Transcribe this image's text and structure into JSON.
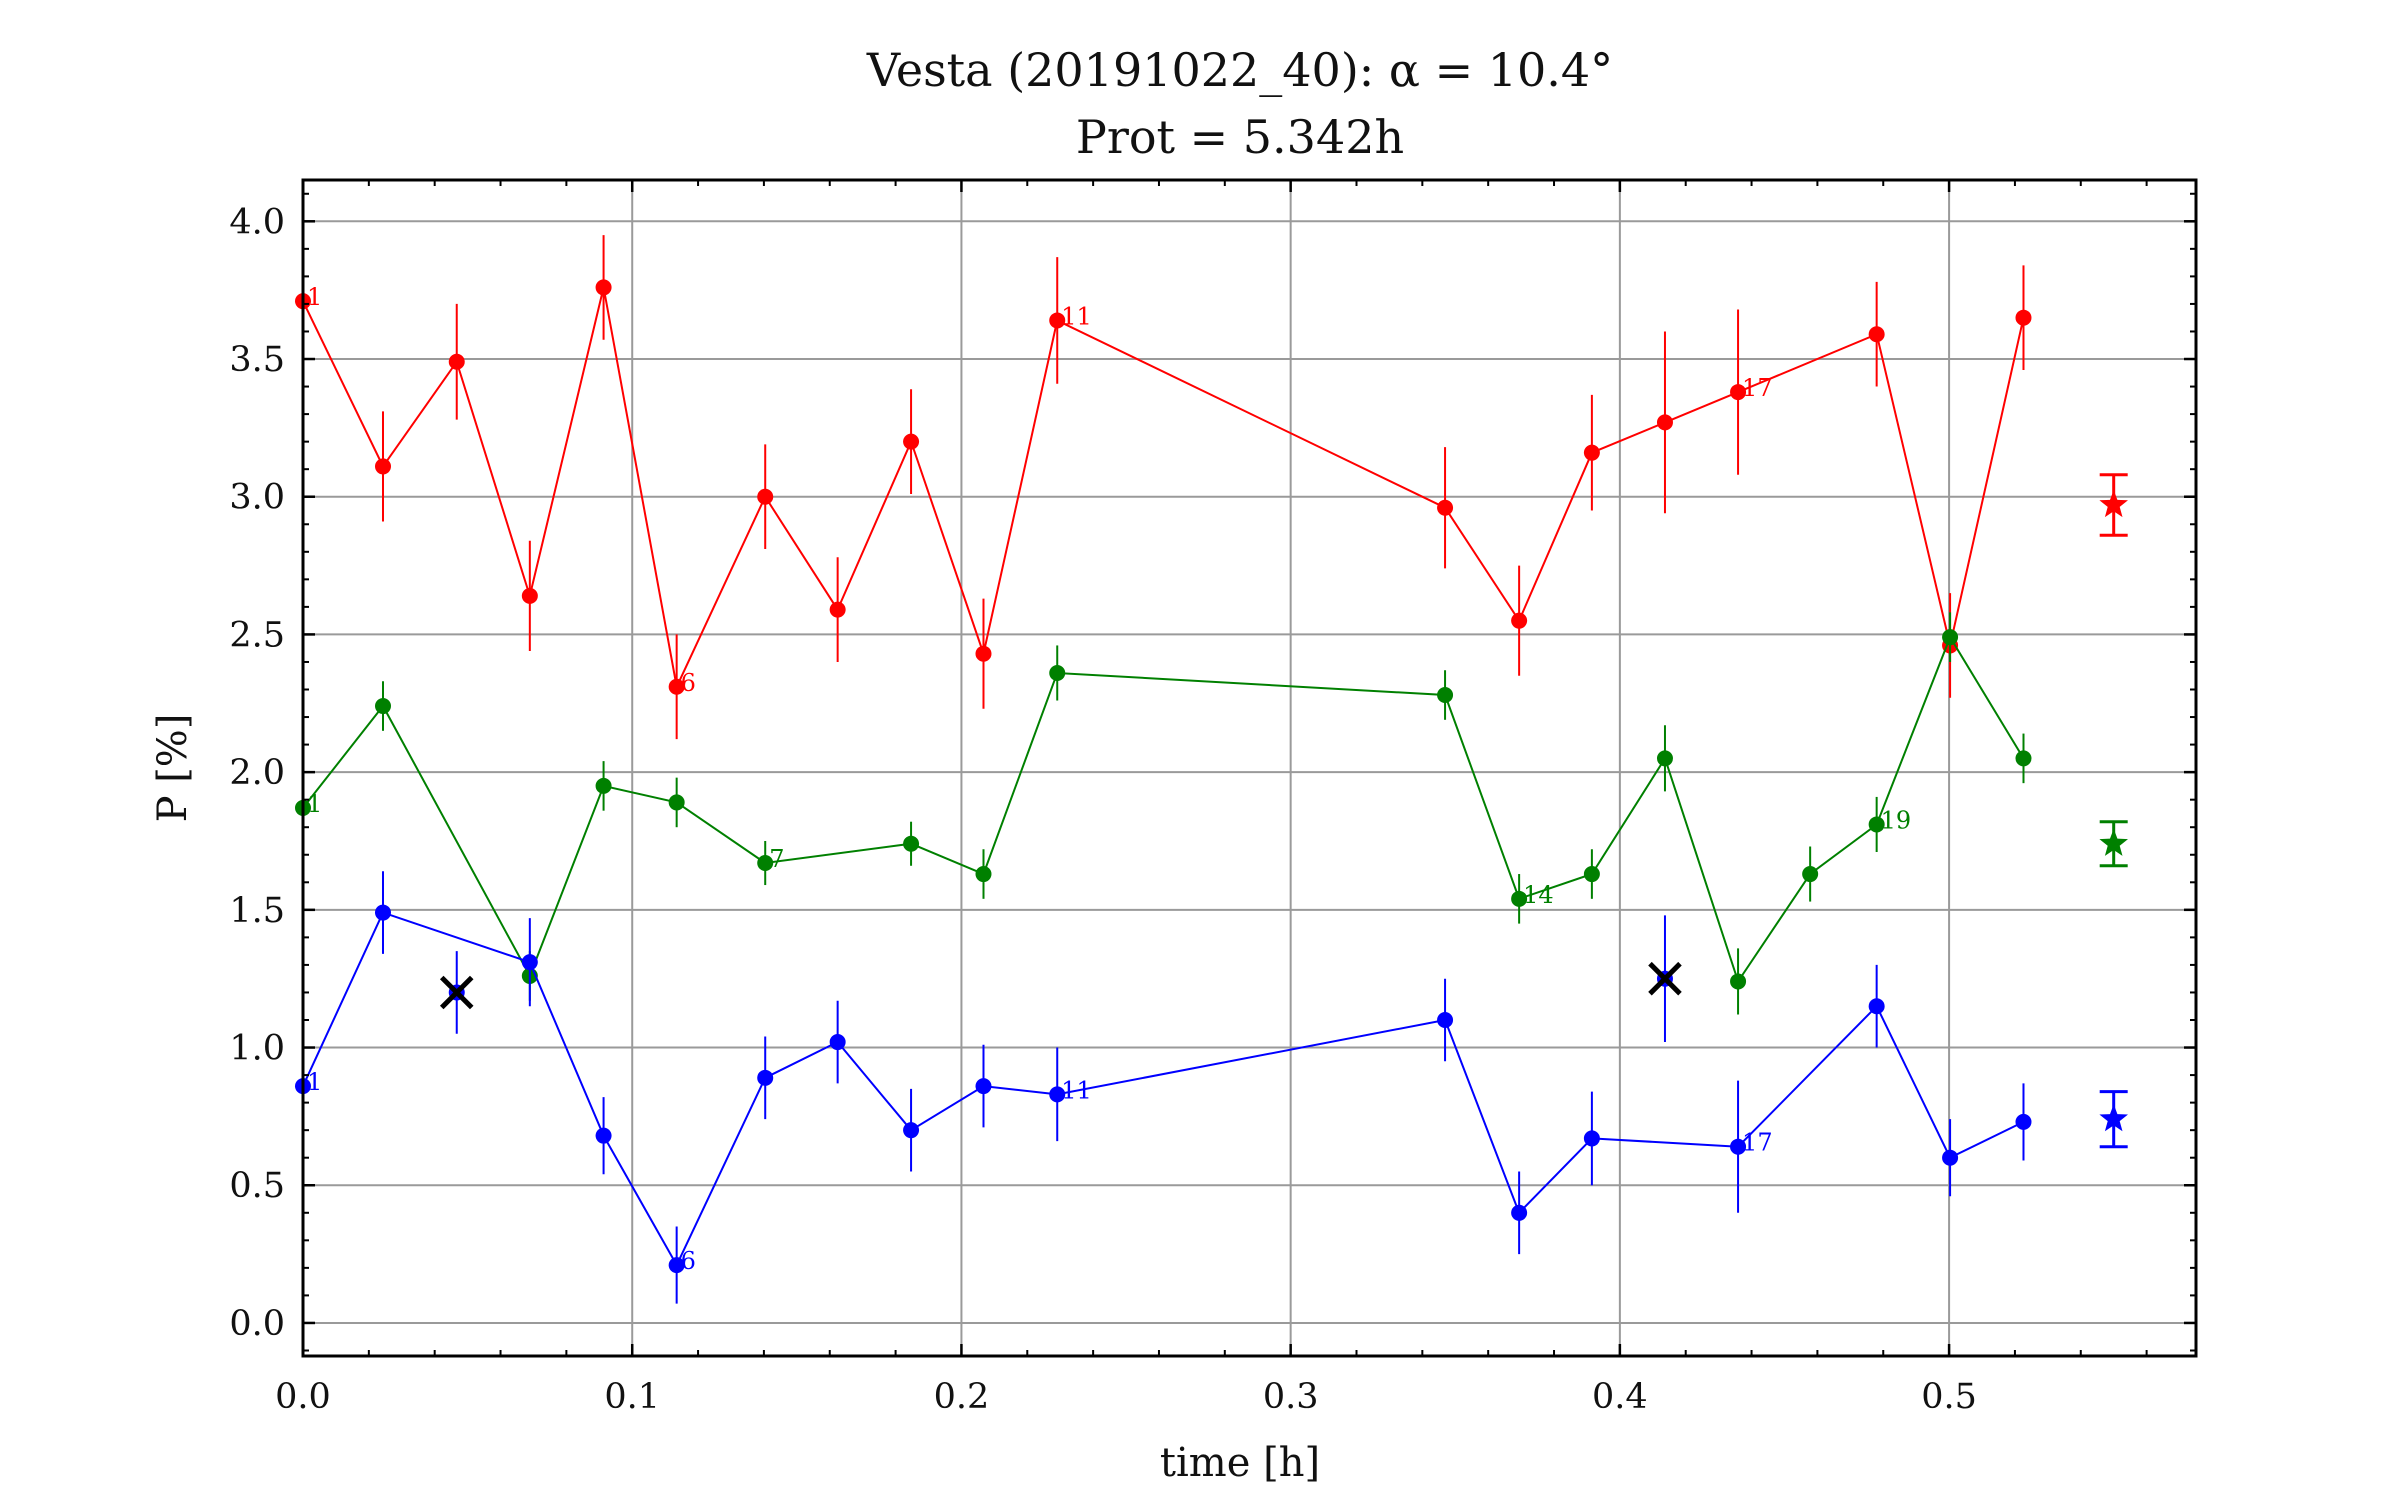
{
  "chart_data": {
    "type": "scatter",
    "title": "Vesta (20191022_40): α = 10.4°",
    "subtitle": "Prot = 5.342h",
    "xlabel": "time [h]",
    "ylabel": "P [%]",
    "xlim": [
      0.0,
      0.575
    ],
    "ylim": [
      -0.12,
      4.15
    ],
    "xticks": [
      0.0,
      0.1,
      0.2,
      0.3,
      0.4,
      0.5
    ],
    "xtick_labels": [
      "0.0",
      "0.1",
      "0.2",
      "0.3",
      "0.4",
      "0.5"
    ],
    "yticks": [
      0.0,
      0.5,
      1.0,
      1.5,
      2.0,
      2.5,
      3.0,
      3.5,
      4.0
    ],
    "ytick_labels": [
      "0.0",
      "0.5",
      "1.0",
      "1.5",
      "2.0",
      "2.5",
      "3.0",
      "3.5",
      "4.0"
    ],
    "grid": true,
    "series": [
      {
        "color": "#ff0000",
        "x": [
          0.0,
          0.0243,
          0.0467,
          0.0689,
          0.0913,
          0.1135,
          0.1404,
          0.1624,
          0.1847,
          0.2067,
          0.2291,
          0.3469,
          0.3694,
          0.3915,
          0.4137,
          0.4359,
          0.478,
          0.5003,
          0.5226
        ],
        "y": [
          3.71,
          3.11,
          3.49,
          2.64,
          3.76,
          2.31,
          3.0,
          2.59,
          3.2,
          2.43,
          3.64,
          2.96,
          2.55,
          3.16,
          3.27,
          3.38,
          3.59,
          2.46,
          3.65
        ],
        "err": [
          0.08,
          0.2,
          0.21,
          0.2,
          0.19,
          0.19,
          0.19,
          0.19,
          0.19,
          0.2,
          0.23,
          0.22,
          0.2,
          0.21,
          0.33,
          0.3,
          0.19,
          0.19,
          0.19
        ],
        "labels": [
          {
            "index": 0,
            "text": "1"
          },
          {
            "index": 5,
            "text": "6"
          },
          {
            "index": 10,
            "text": "11"
          },
          {
            "index": 15,
            "text": "17"
          }
        ],
        "mean": {
          "x": 0.55,
          "y": 2.97,
          "err": 0.11
        }
      },
      {
        "color": "#008000",
        "x": [
          0.0,
          0.0243,
          0.0689,
          0.0913,
          0.1135,
          0.1404,
          0.1847,
          0.2067,
          0.2291,
          0.3469,
          0.3694,
          0.3915,
          0.4137,
          0.4359,
          0.4578,
          0.478,
          0.5003,
          0.5226
        ],
        "y": [
          1.87,
          2.24,
          1.26,
          1.95,
          1.89,
          1.67,
          1.74,
          1.63,
          2.36,
          2.28,
          1.54,
          1.63,
          2.05,
          1.24,
          1.63,
          1.81,
          2.49,
          2.05
        ],
        "err": [
          0.08,
          0.09,
          0.09,
          0.09,
          0.09,
          0.08,
          0.08,
          0.09,
          0.1,
          0.09,
          0.09,
          0.09,
          0.12,
          0.12,
          0.1,
          0.1,
          0.09,
          0.09
        ],
        "labels": [
          {
            "index": 0,
            "text": "1"
          },
          {
            "index": 5,
            "text": "7"
          },
          {
            "index": 10,
            "text": "14"
          },
          {
            "index": 15,
            "text": "19"
          }
        ],
        "mean": {
          "x": 0.55,
          "y": 1.74,
          "err": 0.08
        }
      },
      {
        "color": "#0000ff",
        "x": [
          0.0,
          0.0243,
          0.0689,
          0.0913,
          0.1135,
          0.1404,
          0.1624,
          0.1847,
          0.2067,
          0.2291,
          0.3469,
          0.3694,
          0.3915,
          0.4359,
          0.478,
          0.5003,
          0.5226
        ],
        "y": [
          0.86,
          1.49,
          1.31,
          0.68,
          0.21,
          0.89,
          1.02,
          0.7,
          0.86,
          0.83,
          1.1,
          0.4,
          0.67,
          0.64,
          1.15,
          0.6,
          0.73
        ],
        "err": [
          0.09,
          0.15,
          0.16,
          0.14,
          0.14,
          0.15,
          0.15,
          0.15,
          0.15,
          0.17,
          0.15,
          0.15,
          0.17,
          0.24,
          0.15,
          0.14,
          0.14
        ],
        "labels": [
          {
            "index": 0,
            "text": "1"
          },
          {
            "index": 4,
            "text": "6"
          },
          {
            "index": 9,
            "text": "11"
          },
          {
            "index": 13,
            "text": "17"
          }
        ],
        "mean": {
          "x": 0.55,
          "y": 0.74,
          "err": 0.1
        },
        "rejected": [
          {
            "x": 0.0467,
            "y": 1.2,
            "err": 0.15
          },
          {
            "x": 0.4137,
            "y": 1.25,
            "err": 0.23
          }
        ]
      }
    ]
  }
}
